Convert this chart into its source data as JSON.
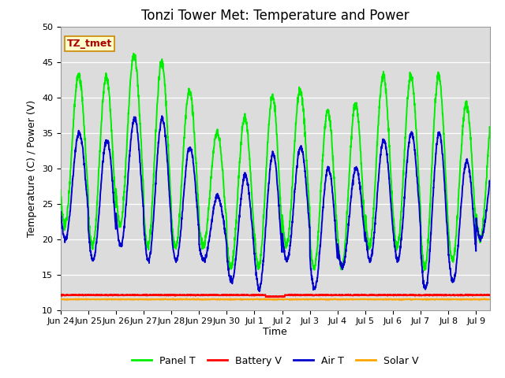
{
  "title": "Tonzi Tower Met: Temperature and Power",
  "xlabel": "Time",
  "ylabel": "Temperature (C) / Power (V)",
  "ylim": [
    10,
    50
  ],
  "yticks": [
    10,
    15,
    20,
    25,
    30,
    35,
    40,
    45,
    50
  ],
  "xtick_labels": [
    "Jun 24",
    "Jun 25",
    "Jun 26",
    "Jun 27",
    "Jun 28",
    "Jun 29",
    "Jun 30",
    "Jul 1",
    "Jul 2",
    "Jul 3",
    "Jul 4",
    "Jul 5",
    "Jul 6",
    "Jul 7",
    "Jul 8",
    "Jul 9"
  ],
  "panel_T_color": "#00EE00",
  "battery_V_color": "#FF0000",
  "air_T_color": "#0000CC",
  "solar_V_color": "#FFA500",
  "bg_color": "#DCDCDC",
  "annotation_text": "TZ_tmet",
  "annotation_fg": "#AA0000",
  "annotation_bg": "#FFFFCC",
  "annotation_border": "#CC8800",
  "n_days": 15.5,
  "battery_V_level": 12.1,
  "solar_V_level": 11.5,
  "line_width": 1.4,
  "title_fontsize": 12,
  "tick_fontsize": 8,
  "label_fontsize": 9,
  "legend_fontsize": 9
}
